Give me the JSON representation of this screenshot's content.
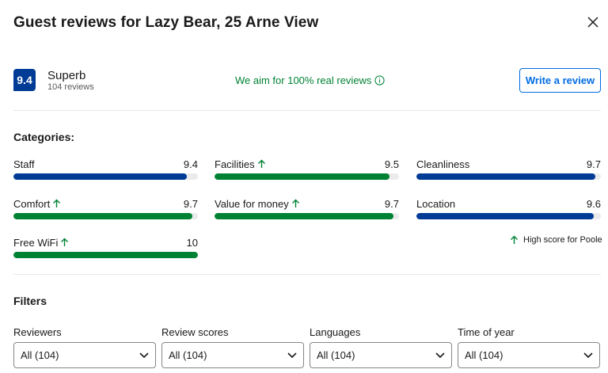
{
  "header": {
    "title": "Guest reviews for Lazy Bear, 25 Arne View",
    "close_icon": "close-icon"
  },
  "summary": {
    "score": "9.4",
    "word": "Superb",
    "count": "104 reviews",
    "real_reviews_text": "We aim for 100% real reviews",
    "write_review_label": "Write a review"
  },
  "categories": {
    "heading": "Categories:",
    "items": [
      {
        "label": "Staff",
        "score": "9.4",
        "fill": 0.94,
        "color": "#003b95",
        "arrow": false
      },
      {
        "label": "Facilities",
        "score": "9.5",
        "fill": 0.95,
        "color": "#008234",
        "arrow": true
      },
      {
        "label": "Cleanliness",
        "score": "9.7",
        "fill": 0.97,
        "color": "#003b95",
        "arrow": false
      },
      {
        "label": "Comfort",
        "score": "9.7",
        "fill": 0.97,
        "color": "#008234",
        "arrow": true
      },
      {
        "label": "Value for money",
        "score": "9.7",
        "fill": 0.97,
        "color": "#008234",
        "arrow": true
      },
      {
        "label": "Location",
        "score": "9.6",
        "fill": 0.96,
        "color": "#003b95",
        "arrow": false
      },
      {
        "label": "Free WiFi",
        "score": "10",
        "fill": 1.0,
        "color": "#008234",
        "arrow": true
      }
    ],
    "high_score_note": "High score for Poole"
  },
  "filters": {
    "heading": "Filters",
    "items": [
      {
        "label": "Reviewers",
        "value": "All (104)"
      },
      {
        "label": "Review scores",
        "value": "All (104)"
      },
      {
        "label": "Languages",
        "value": "All (104)"
      },
      {
        "label": "Time of year",
        "value": "All (104)"
      }
    ]
  },
  "colors": {
    "brand_blue": "#003b95",
    "link_blue": "#006ce4",
    "positive_green": "#008234"
  }
}
